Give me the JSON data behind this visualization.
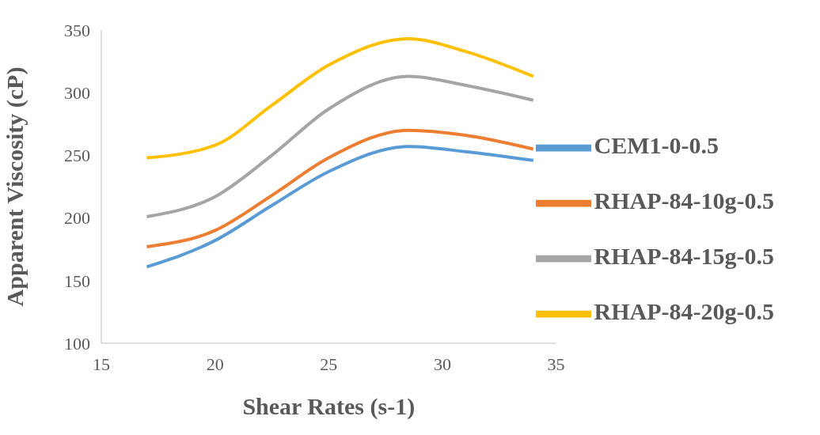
{
  "chart_data": {
    "type": "line",
    "xlabel": "Shear Rates (s-1)",
    "ylabel": "Apparent Viscosity (cP)",
    "x": [
      17,
      20,
      22.5,
      25,
      28.5,
      31,
      34
    ],
    "series": [
      {
        "name": "CEM1-0-0.5",
        "color": "#5b9bd5",
        "values": [
          161,
          182,
          210,
          237,
          257,
          253,
          246
        ]
      },
      {
        "name": "RHAP-84-10g-0.5",
        "color": "#ed7d31",
        "values": [
          177,
          190,
          218,
          248,
          270,
          266,
          255
        ]
      },
      {
        "name": "RHAP-84-15g-0.5",
        "color": "#a5a5a5",
        "values": [
          201,
          217,
          250,
          287,
          313,
          306,
          294
        ]
      },
      {
        "name": "RHAP-84-20g-0.5",
        "color": "#ffc000",
        "values": [
          248,
          258,
          290,
          322,
          343,
          333,
          313
        ]
      }
    ],
    "xlim": [
      15,
      35
    ],
    "xticks": [
      15,
      20,
      25,
      30,
      35
    ],
    "ylim": [
      100,
      350
    ],
    "yticks": [
      100,
      150,
      200,
      250,
      300,
      350
    ],
    "grid": false,
    "legend": "bottom right",
    "marker": "none",
    "line_style": "solid"
  }
}
